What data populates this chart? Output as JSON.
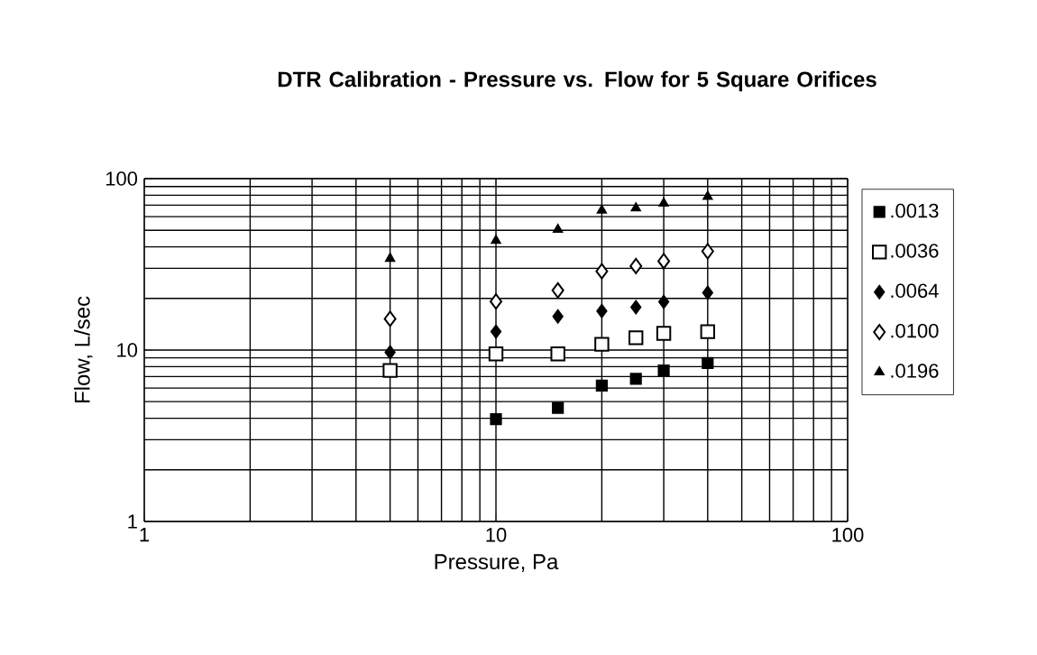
{
  "chart_data": {
    "type": "scatter",
    "title": "DTR Calibration - Pressure vs. Flow for 5 Square Orifices",
    "xlabel": "Pressure, Pa",
    "ylabel": "Flow, L/sec",
    "x": [
      5,
      10,
      15,
      20,
      25,
      30,
      40
    ],
    "series": [
      {
        "name": ".0013",
        "color": "#000000",
        "marker": "square",
        "values": [
          null,
          3.95,
          4.6,
          6.2,
          6.8,
          7.6,
          8.4
        ]
      },
      {
        "name": ".0036",
        "color": "#ffffff",
        "marker": "square",
        "values": [
          7.6,
          9.5,
          9.5,
          10.8,
          11.8,
          12.5,
          12.8
        ]
      },
      {
        "name": ".0064",
        "color": "#000000",
        "marker": "diamond",
        "values": [
          9.7,
          12.8,
          15.7,
          16.9,
          17.8,
          19.1,
          21.6
        ]
      },
      {
        "name": ".0100",
        "color": "#ffffff",
        "marker": "diamond",
        "values": [
          15.2,
          19.2,
          22.3,
          28.8,
          30.9,
          33.0,
          37.7
        ]
      },
      {
        "name": ".0196",
        "color": "#000000",
        "marker": "triangle",
        "values": [
          34.2,
          43.5,
          50.4,
          65.2,
          67.3,
          71.8,
          78.5
        ]
      }
    ],
    "xlim": [
      1,
      100
    ],
    "ylim": [
      1,
      100
    ],
    "xticks": [
      1,
      10,
      100
    ],
    "yticks": [
      1,
      10,
      100
    ],
    "log": "xy",
    "grid": true,
    "legend": "right"
  }
}
